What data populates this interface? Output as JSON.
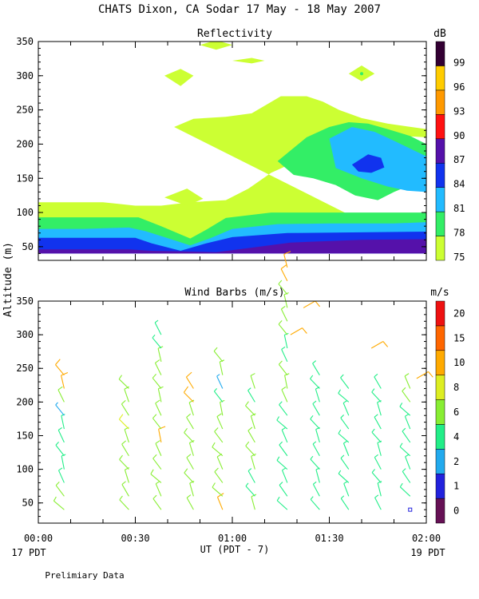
{
  "title": "CHATS Dixon, CA  Sodar  17 May - 18 May 2007",
  "y_axis_label": "Altitude (m)",
  "x_axis_label": "UT  (PDT - 7)",
  "x_left_date": "17 PDT",
  "x_right_date": "19 PDT",
  "footer_note": "Prelimiary Data",
  "chart_data": [
    {
      "type": "heatmap",
      "title": "Reflectivity",
      "x_ticks": [
        "00:00",
        "00:30",
        "01:00",
        "01:30",
        "02:00"
      ],
      "x_range_minutes": [
        0,
        120
      ],
      "ylim": [
        30,
        350
      ],
      "y_ticks": [
        50,
        100,
        150,
        200,
        250,
        300,
        350
      ],
      "colorbar": {
        "unit": "dB",
        "labels": [
          "75",
          "78",
          "81",
          "84",
          "87",
          "90",
          "93",
          "96",
          "99"
        ],
        "colors": [
          "#ccff33",
          "#33ee66",
          "#22bbff",
          "#1133ee",
          "#5511aa",
          "#ff1111",
          "#ff9900",
          "#ffcc00",
          "#330033"
        ]
      },
      "contours": [
        {
          "level": 75,
          "color": "#ccff33",
          "pts": [
            [
              0,
              115
            ],
            [
              10,
              115
            ],
            [
              18,
              115
            ],
            [
              25,
              110
            ],
            [
              31,
              110
            ],
            [
              35,
              100
            ],
            [
              42,
              90
            ],
            [
              47,
              92
            ],
            [
              57,
              92
            ],
            [
              63,
              108
            ],
            [
              70,
              125
            ],
            [
              78,
              150
            ],
            [
              88,
              150
            ],
            [
              95,
              135
            ],
            [
              100,
              118
            ],
            [
              113,
              118
            ],
            [
              120,
              118
            ],
            [
              120,
              210
            ],
            [
              112,
              220
            ],
            [
              107,
              235
            ],
            [
              100,
              245
            ],
            [
              90,
              265
            ],
            [
              83,
              272
            ],
            [
              77,
              270
            ],
            [
              65,
              245
            ],
            [
              57,
              243
            ],
            [
              53,
              240
            ],
            [
              42,
              225
            ],
            [
              55,
              235
            ],
            [
              70,
              270
            ],
            [
              72,
              262
            ],
            [
              82,
              270
            ],
            [
              87,
              265
            ],
            [
              92,
              255
            ],
            [
              105,
              240
            ],
            [
              110,
              232
            ],
            [
              120,
              225
            ],
            [
              120,
              40
            ],
            [
              0,
              40
            ]
          ]
        },
        {
          "level": 75,
          "color": "#ccff33",
          "pts": [
            [
              42,
              225
            ],
            [
              48,
              237
            ],
            [
              58,
              240
            ],
            [
              66,
              245
            ],
            [
              75,
              270
            ],
            [
              83,
              270
            ],
            [
              88,
              262
            ],
            [
              93,
              250
            ],
            [
              100,
              238
            ],
            [
              108,
              230
            ],
            [
              120,
              222
            ],
            [
              120,
              210
            ],
            [
              112,
              212
            ],
            [
              100,
              200
            ],
            [
              90,
              188
            ],
            [
              80,
              175
            ],
            [
              72,
              158
            ],
            [
              65,
              135
            ],
            [
              58,
              118
            ],
            [
              47,
              115
            ],
            [
              38,
              110
            ],
            [
              30,
              110
            ],
            [
              20,
              115
            ],
            [
              0,
              115
            ],
            [
              0,
              40
            ],
            [
              120,
              40
            ]
          ]
        },
        {
          "level": 78,
          "color": "#33ee66",
          "pts": [
            [
              0,
              93
            ],
            [
              12,
              93
            ],
            [
              24,
              93
            ],
            [
              31,
              93
            ],
            [
              38,
              80
            ],
            [
              47,
              62
            ],
            [
              52,
              75
            ],
            [
              58,
              92
            ],
            [
              72,
              100
            ],
            [
              90,
              100
            ],
            [
              105,
              100
            ],
            [
              120,
              100
            ],
            [
              120,
              40
            ],
            [
              0,
              40
            ]
          ]
        },
        {
          "level": 78,
          "color": "#33ee66",
          "pts": [
            [
              74,
              175
            ],
            [
              83,
              210
            ],
            [
              90,
              225
            ],
            [
              96,
              232
            ],
            [
              102,
              230
            ],
            [
              108,
              222
            ],
            [
              115,
              212
            ],
            [
              120,
              200
            ],
            [
              120,
              140
            ],
            [
              115,
              140
            ],
            [
              110,
              130
            ],
            [
              105,
              118
            ],
            [
              98,
              125
            ],
            [
              92,
              140
            ],
            [
              85,
              150
            ],
            [
              79,
              155
            ]
          ]
        },
        {
          "level": 81,
          "color": "#22bbff",
          "pts": [
            [
              0,
              76
            ],
            [
              14,
              76
            ],
            [
              28,
              78
            ],
            [
              33,
              73
            ],
            [
              39,
              64
            ],
            [
              47,
              52
            ],
            [
              53,
              62
            ],
            [
              60,
              76
            ],
            [
              74,
              83
            ],
            [
              90,
              84
            ],
            [
              110,
              84
            ],
            [
              120,
              86
            ],
            [
              120,
              40
            ],
            [
              0,
              40
            ]
          ]
        },
        {
          "level": 81,
          "color": "#22bbff",
          "pts": [
            [
              90,
              208
            ],
            [
              97,
              225
            ],
            [
              104,
              218
            ],
            [
              110,
              205
            ],
            [
              120,
              182
            ],
            [
              120,
              130
            ],
            [
              114,
              132
            ],
            [
              108,
              138
            ],
            [
              100,
              150
            ],
            [
              92,
              165
            ]
          ]
        },
        {
          "level": 84,
          "color": "#1133ee",
          "pts": [
            [
              0,
              63
            ],
            [
              12,
              63
            ],
            [
              30,
              63
            ],
            [
              35,
              55
            ],
            [
              44,
              44
            ],
            [
              52,
              55
            ],
            [
              60,
              64
            ],
            [
              77,
              70
            ],
            [
              100,
              71
            ],
            [
              120,
              72
            ],
            [
              120,
              40
            ],
            [
              0,
              40
            ]
          ]
        },
        {
          "level": 84,
          "color": "#1133ee",
          "pts": [
            [
              97,
              170
            ],
            [
              102,
              185
            ],
            [
              106,
              180
            ],
            [
              107,
              166
            ],
            [
              103,
              158
            ],
            [
              99,
              160
            ]
          ]
        },
        {
          "level": 87,
          "color": "#5511aa",
          "pts": [
            [
              0,
              46
            ],
            [
              28,
              46
            ],
            [
              35,
              44
            ],
            [
              55,
              42
            ],
            [
              65,
              48
            ],
            [
              78,
              56
            ],
            [
              100,
              60
            ],
            [
              120,
              61
            ],
            [
              120,
              40
            ],
            [
              0,
              40
            ]
          ]
        }
      ],
      "blobs": [
        {
          "level": 75,
          "color": "#ccff33",
          "pts": [
            [
              39,
              122
            ],
            [
              46,
              110
            ],
            [
              51,
              120
            ],
            [
              46,
              135
            ]
          ]
        },
        {
          "level": 75,
          "color": "#ccff33",
          "pts": [
            [
              39,
              300
            ],
            [
              44,
              285
            ],
            [
              48,
              300
            ],
            [
              44,
              310
            ]
          ]
        },
        {
          "level": 75,
          "color": "#ccff33",
          "pts": [
            [
              50,
              345
            ],
            [
              55,
              338
            ],
            [
              60,
              345
            ],
            [
              55,
              352
            ]
          ]
        },
        {
          "level": 75,
          "color": "#ccff33",
          "pts": [
            [
              60,
              322
            ],
            [
              66,
              318
            ],
            [
              70,
              322
            ],
            [
              66,
              326
            ]
          ]
        },
        {
          "level": 75,
          "color": "#ccff33",
          "pts": [
            [
              96,
              303
            ],
            [
              100,
              315
            ],
            [
              104,
              303
            ],
            [
              100,
              292
            ]
          ]
        }
      ]
    },
    {
      "type": "wind_barbs",
      "title": "Wind Barbs (m/s)",
      "x_ticks": [
        "00:00",
        "00:30",
        "01:00",
        "01:30",
        "02:00"
      ],
      "x_range_minutes": [
        0,
        120
      ],
      "ylim": [
        20,
        350
      ],
      "y_ticks": [
        50,
        100,
        150,
        200,
        250,
        300,
        350
      ],
      "colorbar": {
        "unit": "m/s",
        "labels": [
          "0",
          "1",
          "2",
          "4",
          "6",
          "8",
          "10",
          "15",
          "20"
        ],
        "colors": [
          "#661155",
          "#2222dd",
          "#22aaee",
          "#22ee88",
          "#88ee33",
          "#ddee22",
          "#ffaa00",
          "#ff6600",
          "#ee1111"
        ]
      },
      "profiles": [
        {
          "t": 8,
          "speeds": [
            5,
            5,
            4,
            4,
            4,
            4,
            3,
            2,
            6,
            11,
            11
          ]
        },
        {
          "t": 28,
          "speeds": [
            5,
            5,
            5,
            6,
            6,
            5,
            8,
            6,
            6,
            5
          ]
        },
        {
          "t": 38,
          "speeds": [
            5,
            5,
            6,
            6,
            6,
            10,
            6,
            6,
            6,
            6,
            6,
            6,
            3,
            3
          ]
        },
        {
          "t": 48,
          "speeds": [
            5,
            5,
            6,
            6,
            6,
            6,
            6,
            6,
            10,
            10
          ]
        },
        {
          "t": 57,
          "speeds": [
            10,
            6,
            6,
            6,
            6,
            6,
            6,
            5,
            3,
            2,
            5,
            5
          ]
        },
        {
          "t": 67,
          "speeds": [
            6,
            3,
            3,
            6,
            6,
            6,
            6,
            6,
            3,
            5
          ]
        },
        {
          "t": 77,
          "speeds": [
            4,
            4,
            3,
            4,
            4,
            3,
            4,
            4,
            5,
            5,
            5,
            4,
            4,
            5,
            5,
            5,
            5,
            11,
            11
          ]
        },
        {
          "t": 87,
          "speeds": [
            3,
            3,
            3,
            3,
            3,
            4,
            4,
            4,
            4,
            4,
            4
          ]
        },
        {
          "t": 96,
          "speeds": [
            3,
            3,
            3,
            4,
            4,
            4,
            4,
            4,
            4,
            4
          ]
        },
        {
          "t": 106,
          "speeds": [
            4,
            4,
            4,
            4,
            4,
            4,
            4,
            4,
            4,
            4
          ]
        },
        {
          "t": 115,
          "speeds": [
            1,
            4,
            4,
            4,
            4,
            4,
            4,
            4,
            5,
            5
          ]
        }
      ],
      "upper_barbs": [
        {
          "t": 78,
          "alt": 300,
          "speed": 11
        },
        {
          "t": 82,
          "alt": 340,
          "speed": 11
        },
        {
          "t": 103,
          "alt": 280,
          "speed": 11
        },
        {
          "t": 117,
          "alt": 235,
          "speed": 11
        }
      ]
    }
  ]
}
